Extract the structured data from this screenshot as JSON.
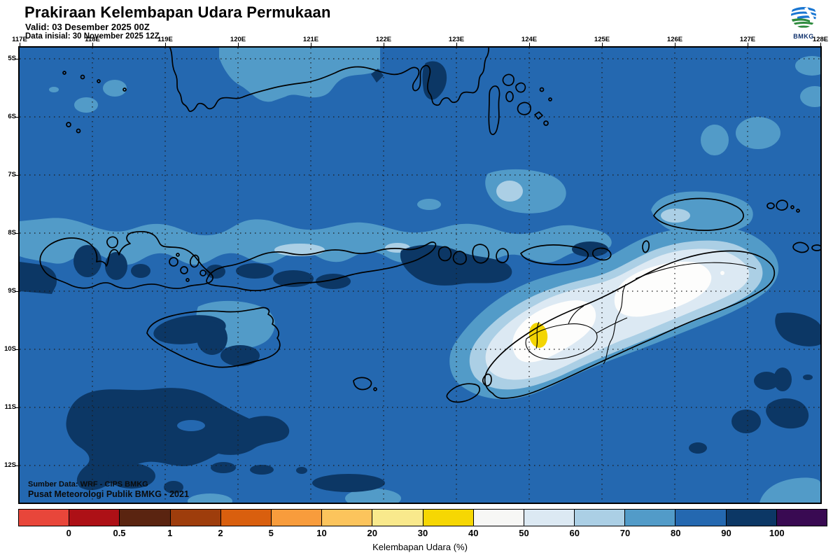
{
  "header": {
    "title": "Prakiraan Kelembapan Udara Permukaan",
    "valid_line": "Valid: 03 Desember 2025 00Z",
    "init_line": "Data inisial: 30 November 2025 12Z",
    "logo_text": "BMKG"
  },
  "map": {
    "lon_labels": [
      "117E",
      "118E",
      "119E",
      "120E",
      "121E",
      "122E",
      "123E",
      "124E",
      "125E",
      "126E",
      "127E",
      "128E"
    ],
    "lat_labels": [
      "5S",
      "6S",
      "7S",
      "8S",
      "9S",
      "10S",
      "11S",
      "12S"
    ],
    "source_line1": "Sumber Data: WRF - CIPS BMKG",
    "source_line2": "Pusat Meteorologi Publik BMKG - 2021"
  },
  "colorbar": {
    "label": "Kelembapan Udara (%)",
    "ticks": [
      "0",
      "0.5",
      "1",
      "2",
      "5",
      "10",
      "20",
      "30",
      "40",
      "50",
      "60",
      "70",
      "80",
      "90",
      "100"
    ],
    "colors": [
      "#e8463a",
      "#ad1016",
      "#5a2410",
      "#9e3d0c",
      "#d95f0e",
      "#f89c3c",
      "#fcc45c",
      "#f9e98c",
      "#f6d703",
      "#f7f7f5",
      "#dce9f3",
      "#abcfe5",
      "#529bc8",
      "#2468b0",
      "#0c3765",
      "#390a52"
    ]
  },
  "palette": {
    "ocean": "#2468b0",
    "rh90": "#0c3765",
    "rh70": "#529bc8",
    "rh60": "#abcfe5",
    "rh50": "#dce9f3",
    "rh40": "#fdfdfc",
    "rh30": "#f3d503",
    "coast": "#000000",
    "logo_blue": "#1976d2",
    "logo_green": "#2e8b3d"
  }
}
